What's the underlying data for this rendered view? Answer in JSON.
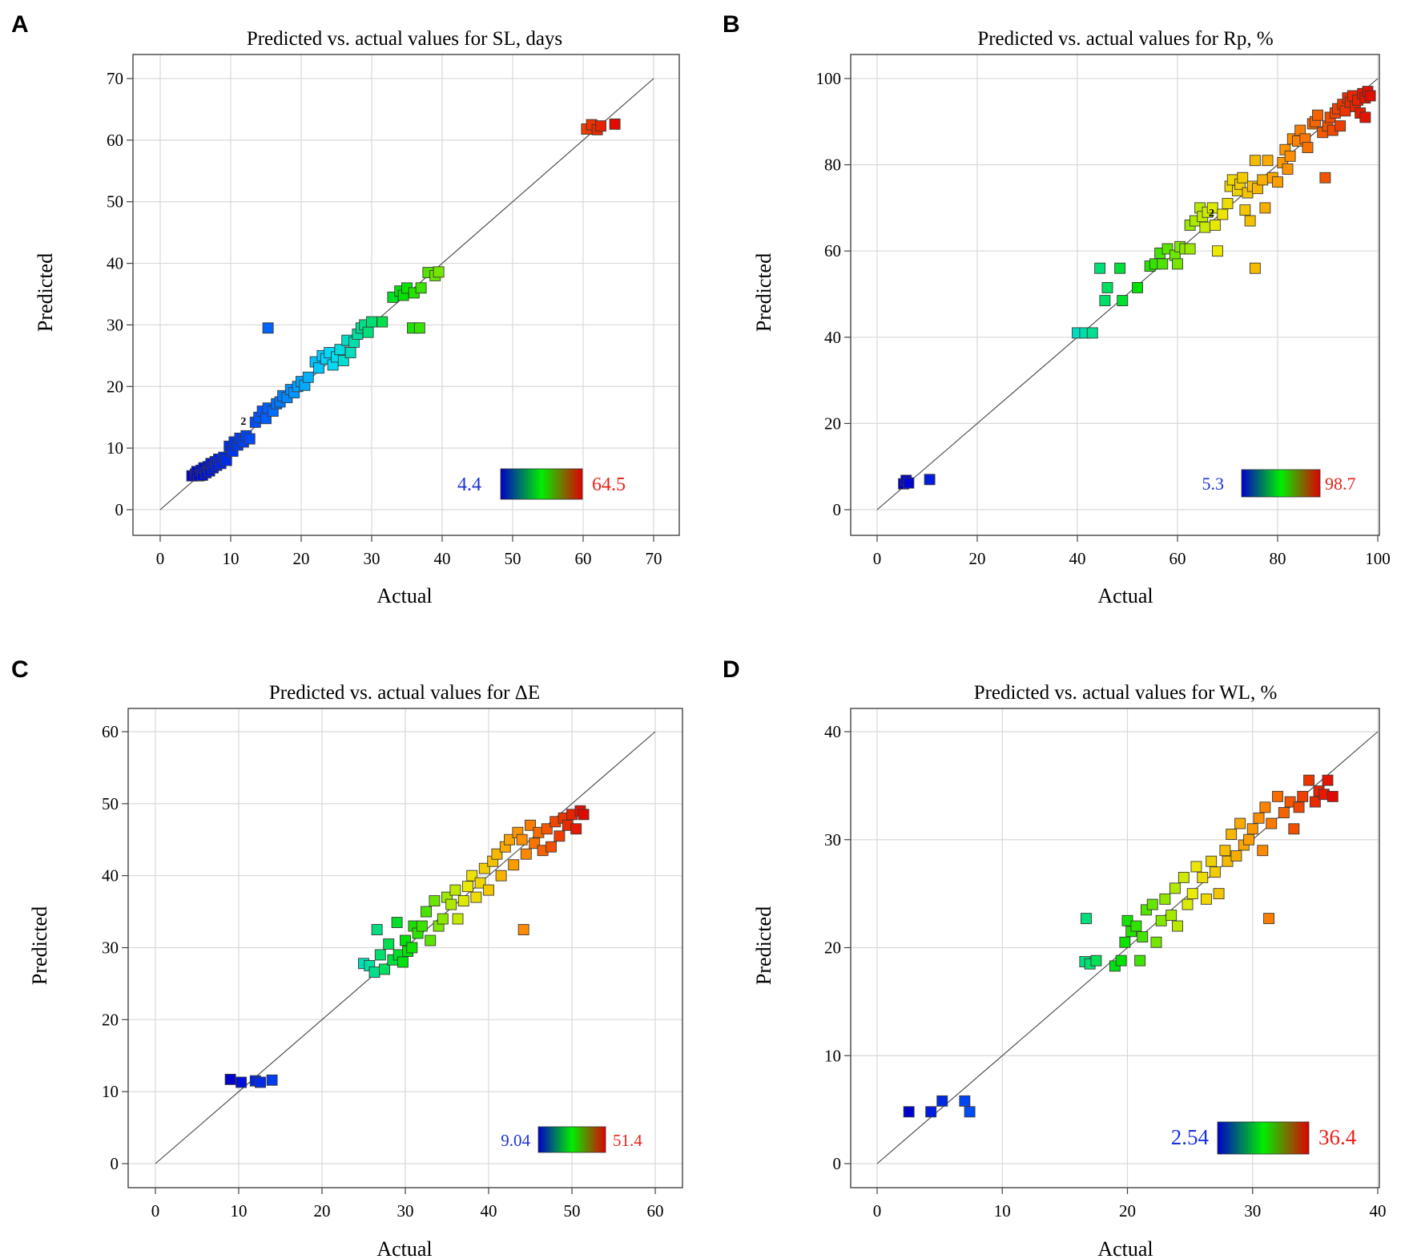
{
  "figure": {
    "panels": [
      "A",
      "B",
      "C",
      "D"
    ]
  },
  "chart_data": [
    {
      "panel": "A",
      "type": "scatter",
      "title": "Predicted vs. actual values for SL, days",
      "xlabel": "Actual",
      "ylabel": "Predicted",
      "xlim": [
        0,
        70
      ],
      "ylim": [
        0,
        70
      ],
      "xticks": [
        0,
        10,
        20,
        30,
        40,
        50,
        60,
        70
      ],
      "yticks": [
        0,
        10,
        20,
        30,
        40,
        50,
        60,
        70
      ],
      "reference_line": "y = x",
      "colorbar": {
        "min_label": "4.4",
        "max_label": "64.5",
        "min": 4.4,
        "max": 64.5
      },
      "annotations": [
        {
          "text": "2",
          "x": 11.8,
          "y": 13.8
        }
      ],
      "points": [
        [
          4.5,
          5.5
        ],
        [
          5,
          5.8
        ],
        [
          5.2,
          6.2
        ],
        [
          5.5,
          5.5
        ],
        [
          5.8,
          6.4
        ],
        [
          6,
          5.6
        ],
        [
          6.2,
          6.8
        ],
        [
          6.5,
          6
        ],
        [
          6.8,
          7
        ],
        [
          7,
          6.3
        ],
        [
          7.2,
          7.5
        ],
        [
          7.5,
          6.8
        ],
        [
          7.8,
          7.8
        ],
        [
          8,
          7.2
        ],
        [
          8.3,
          8.2
        ],
        [
          8.6,
          7.5
        ],
        [
          9,
          8.5
        ],
        [
          9.4,
          8
        ],
        [
          9.8,
          10.3
        ],
        [
          10.3,
          9.5
        ],
        [
          10.5,
          11
        ],
        [
          11,
          10.5
        ],
        [
          11.3,
          11.6
        ],
        [
          11.8,
          11
        ],
        [
          12.2,
          12
        ],
        [
          12.7,
          11.5
        ],
        [
          13.5,
          14.2
        ],
        [
          14,
          15
        ],
        [
          14.5,
          16
        ],
        [
          15,
          14.8
        ],
        [
          15.3,
          16.5
        ],
        [
          16,
          16
        ],
        [
          16.5,
          17.2
        ],
        [
          17,
          17.5
        ],
        [
          17.4,
          18.5
        ],
        [
          18,
          18.2
        ],
        [
          18.5,
          19.5
        ],
        [
          19,
          19
        ],
        [
          19.5,
          20
        ],
        [
          20,
          20.8
        ],
        [
          20.5,
          20.2
        ],
        [
          21,
          21.5
        ],
        [
          22,
          24
        ],
        [
          22.5,
          23
        ],
        [
          23,
          25
        ],
        [
          23.5,
          24.5
        ],
        [
          24,
          25.5
        ],
        [
          24.5,
          23.5
        ],
        [
          25,
          24.8
        ],
        [
          25.5,
          26
        ],
        [
          26,
          24.2
        ],
        [
          26.5,
          27.5
        ],
        [
          27,
          25.5
        ],
        [
          27.5,
          27.2
        ],
        [
          28,
          28.5
        ],
        [
          28.5,
          29.5
        ],
        [
          29,
          30
        ],
        [
          29.5,
          28.8
        ],
        [
          30,
          30.5
        ],
        [
          31.5,
          30.5
        ],
        [
          33,
          34.5
        ],
        [
          34,
          35.5
        ],
        [
          34.5,
          34.8
        ],
        [
          35,
          36
        ],
        [
          36,
          35.2
        ],
        [
          37,
          36
        ],
        [
          38,
          38.5
        ],
        [
          39,
          38
        ],
        [
          39.5,
          38.6
        ],
        [
          35.8,
          29.5
        ],
        [
          36.8,
          29.5
        ],
        [
          15.3,
          29.5
        ],
        [
          60.5,
          61.8
        ],
        [
          61.2,
          62.5
        ],
        [
          62,
          61.7
        ],
        [
          62.5,
          62.3
        ],
        [
          64.5,
          62.6
        ]
      ]
    },
    {
      "panel": "B",
      "type": "scatter",
      "title": "Predicted vs. actual values for Rp, %",
      "xlabel": "Actual",
      "ylabel": "Predicted",
      "xlim": [
        0,
        100
      ],
      "ylim": [
        0,
        100
      ],
      "xticks": [
        0,
        20,
        40,
        60,
        80,
        100
      ],
      "yticks": [
        0,
        20,
        40,
        60,
        80,
        100
      ],
      "reference_line": "y = x",
      "colorbar": {
        "min_label": "5.3",
        "max_label": "98.7",
        "min": 5.3,
        "max": 98.7
      },
      "annotations": [
        {
          "text": "2",
          "x": 66.8,
          "y": 68
        }
      ],
      "points": [
        [
          5.3,
          6
        ],
        [
          5.8,
          6.8
        ],
        [
          6.3,
          6.2
        ],
        [
          10.5,
          7
        ],
        [
          40,
          41
        ],
        [
          41.5,
          41
        ],
        [
          43,
          41
        ],
        [
          44.5,
          56
        ],
        [
          45.5,
          48.5
        ],
        [
          46,
          51.5
        ],
        [
          48.5,
          56
        ],
        [
          49,
          48.5
        ],
        [
          52,
          51.5
        ],
        [
          54.5,
          56.5
        ],
        [
          55.5,
          57
        ],
        [
          56.5,
          59.5
        ],
        [
          57,
          57
        ],
        [
          58,
          60.5
        ],
        [
          59.5,
          59
        ],
        [
          60,
          57
        ],
        [
          60.5,
          61
        ],
        [
          61.5,
          60.5
        ],
        [
          62.5,
          60.5
        ],
        [
          62.5,
          66
        ],
        [
          63.5,
          67
        ],
        [
          64.5,
          70
        ],
        [
          65,
          68
        ],
        [
          65.5,
          65.5
        ],
        [
          66,
          69
        ],
        [
          67,
          70
        ],
        [
          67.5,
          66
        ],
        [
          68,
          60
        ],
        [
          69,
          68.5
        ],
        [
          70,
          71
        ],
        [
          70.5,
          75
        ],
        [
          71,
          76.5
        ],
        [
          72,
          74
        ],
        [
          72.5,
          75.5
        ],
        [
          73,
          77
        ],
        [
          73.5,
          69.5
        ],
        [
          74,
          73.5
        ],
        [
          74.5,
          67
        ],
        [
          75,
          75
        ],
        [
          75.5,
          81
        ],
        [
          75.5,
          56
        ],
        [
          76,
          74.5
        ],
        [
          77,
          76.5
        ],
        [
          77.5,
          70
        ],
        [
          78,
          81
        ],
        [
          79,
          77
        ],
        [
          80,
          76
        ],
        [
          81,
          80.5
        ],
        [
          81.5,
          83.5
        ],
        [
          82,
          79
        ],
        [
          82.5,
          82
        ],
        [
          83,
          86
        ],
        [
          84,
          85.5
        ],
        [
          84.5,
          88
        ],
        [
          85.5,
          86
        ],
        [
          86,
          84
        ],
        [
          87,
          89.5
        ],
        [
          87.5,
          90
        ],
        [
          88,
          91.5
        ],
        [
          89,
          87.5
        ],
        [
          89.5,
          77
        ],
        [
          90,
          89
        ],
        [
          90.5,
          91
        ],
        [
          91,
          88
        ],
        [
          91.5,
          92
        ],
        [
          92,
          93
        ],
        [
          92.5,
          89
        ],
        [
          93,
          94
        ],
        [
          93.5,
          92.5
        ],
        [
          94,
          95.5
        ],
        [
          94.5,
          94.5
        ],
        [
          95,
          96
        ],
        [
          95.5,
          93.5
        ],
        [
          96,
          95
        ],
        [
          96.5,
          92
        ],
        [
          97,
          96.5
        ],
        [
          97.5,
          95.5
        ],
        [
          97.5,
          91
        ],
        [
          98,
          97
        ],
        [
          98.5,
          96
        ]
      ]
    },
    {
      "panel": "C",
      "type": "scatter",
      "title": "Predicted vs. actual values for ΔE",
      "xlabel": "Actual",
      "ylabel": "Predicted",
      "xlim": [
        0,
        60
      ],
      "ylim": [
        0,
        60
      ],
      "xticks": [
        0,
        10,
        20,
        30,
        40,
        50,
        60
      ],
      "yticks": [
        0,
        10,
        20,
        30,
        40,
        50,
        60
      ],
      "reference_line": "y = x",
      "colorbar": {
        "min_label": "9.04",
        "max_label": "51.4",
        "min": 9.04,
        "max": 51.4
      },
      "annotations": [],
      "points": [
        [
          9,
          11.7
        ],
        [
          10.3,
          11.3
        ],
        [
          12,
          11.5
        ],
        [
          12.6,
          11.3
        ],
        [
          14,
          11.6
        ],
        [
          25,
          27.8
        ],
        [
          25.7,
          27.5
        ],
        [
          26.3,
          26.6
        ],
        [
          26.6,
          32.5
        ],
        [
          27,
          29
        ],
        [
          27.5,
          27
        ],
        [
          28,
          30.5
        ],
        [
          28.5,
          28.3
        ],
        [
          29,
          33.5
        ],
        [
          29.2,
          29
        ],
        [
          29.7,
          28
        ],
        [
          30,
          31
        ],
        [
          30.3,
          29.5
        ],
        [
          30.8,
          30
        ],
        [
          31,
          33
        ],
        [
          31.5,
          32
        ],
        [
          32,
          33
        ],
        [
          32.5,
          35
        ],
        [
          33,
          31
        ],
        [
          33.5,
          36.5
        ],
        [
          34,
          33
        ],
        [
          34.5,
          34
        ],
        [
          35,
          37
        ],
        [
          35.5,
          36
        ],
        [
          36,
          38
        ],
        [
          36.3,
          34
        ],
        [
          37,
          36.5
        ],
        [
          37.5,
          38.5
        ],
        [
          38,
          40
        ],
        [
          38.5,
          37
        ],
        [
          39,
          39
        ],
        [
          39.5,
          41
        ],
        [
          40,
          38
        ],
        [
          40.5,
          42
        ],
        [
          41,
          43
        ],
        [
          41.5,
          40
        ],
        [
          42,
          44
        ],
        [
          42.5,
          45
        ],
        [
          43,
          41.5
        ],
        [
          43.5,
          46
        ],
        [
          44,
          45
        ],
        [
          44.5,
          43
        ],
        [
          44.2,
          32.5
        ],
        [
          45,
          47
        ],
        [
          45.5,
          44.5
        ],
        [
          46,
          46
        ],
        [
          46.5,
          43.5
        ],
        [
          47,
          46.5
        ],
        [
          47.5,
          44
        ],
        [
          48,
          47.5
        ],
        [
          48.5,
          45.5
        ],
        [
          49,
          48
        ],
        [
          49.5,
          47
        ],
        [
          50,
          48.5
        ],
        [
          50.5,
          46.5
        ],
        [
          51,
          49
        ],
        [
          51.4,
          48.5
        ]
      ]
    },
    {
      "panel": "D",
      "type": "scatter",
      "title": "Predicted vs. actual values for WL, %",
      "xlabel": "Actual",
      "ylabel": "Predicted",
      "xlim": [
        0,
        40
      ],
      "ylim": [
        0,
        40
      ],
      "xticks": [
        0,
        10,
        20,
        30,
        40
      ],
      "yticks": [
        0,
        10,
        20,
        30,
        40
      ],
      "reference_line": "y = x",
      "colorbar": {
        "min_label": "2.54",
        "max_label": "36.4",
        "min": 2.54,
        "max": 36.4
      },
      "annotations": [],
      "points": [
        [
          2.54,
          4.8
        ],
        [
          4.3,
          4.8
        ],
        [
          5.2,
          5.8
        ],
        [
          7,
          5.8
        ],
        [
          7.4,
          4.8
        ],
        [
          16.6,
          18.7
        ],
        [
          16.7,
          22.7
        ],
        [
          17,
          18.5
        ],
        [
          17.5,
          18.8
        ],
        [
          19,
          18.3
        ],
        [
          19.5,
          18.8
        ],
        [
          19.8,
          20.5
        ],
        [
          20,
          22.5
        ],
        [
          20.3,
          21.5
        ],
        [
          20.7,
          22
        ],
        [
          21,
          18.8
        ],
        [
          21.2,
          21
        ],
        [
          21.5,
          23.5
        ],
        [
          22,
          24
        ],
        [
          22.3,
          20.5
        ],
        [
          22.7,
          22.5
        ],
        [
          23,
          24.5
        ],
        [
          23.5,
          23
        ],
        [
          23.8,
          25.5
        ],
        [
          24,
          22
        ],
        [
          24.5,
          26.5
        ],
        [
          24.8,
          24
        ],
        [
          25.2,
          25
        ],
        [
          25.5,
          27.5
        ],
        [
          26,
          26.5
        ],
        [
          26.3,
          24.5
        ],
        [
          26.7,
          28
        ],
        [
          27,
          27
        ],
        [
          27.3,
          25
        ],
        [
          27.8,
          29
        ],
        [
          28,
          28
        ],
        [
          28.3,
          30.5
        ],
        [
          28.7,
          28.5
        ],
        [
          29,
          31.5
        ],
        [
          29.3,
          29.5
        ],
        [
          29.7,
          30
        ],
        [
          30,
          31
        ],
        [
          30.5,
          32
        ],
        [
          30.8,
          29
        ],
        [
          31,
          33
        ],
        [
          31.3,
          22.7
        ],
        [
          31.5,
          31.5
        ],
        [
          32,
          34
        ],
        [
          32.5,
          32.5
        ],
        [
          33,
          33.5
        ],
        [
          33.3,
          31
        ],
        [
          33.7,
          33
        ],
        [
          34,
          34
        ],
        [
          34.5,
          35.5
        ],
        [
          35,
          33.5
        ],
        [
          35.3,
          34.5
        ],
        [
          35.7,
          34.2
        ],
        [
          36,
          35.5
        ],
        [
          36.4,
          34
        ]
      ]
    }
  ]
}
